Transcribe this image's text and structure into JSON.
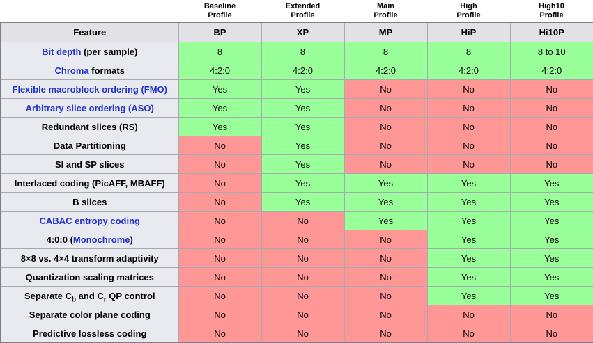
{
  "title": "H.264 profile feature comparison table",
  "colors": {
    "yes_cell_bg": "#99ff99",
    "no_cell_bg": "#ff9797",
    "feature_cell_bg": "#e9e9f0",
    "header_cell_bg": "#e2e2e5",
    "link_text": "#2233cc",
    "grid_border": "#a7a9b1",
    "outer_border": "#7e7e86"
  },
  "profile_headers": [
    {
      "line1": "",
      "line2": ""
    },
    {
      "line1": "Baseline",
      "line2": "Profile"
    },
    {
      "line1": "Extended",
      "line2": "Profile"
    },
    {
      "line1": "Main",
      "line2": "Profile"
    },
    {
      "line1": "High",
      "line2": "Profile"
    },
    {
      "line1": "High10",
      "line2": "Profile"
    }
  ],
  "columns": [
    "Feature",
    "BP",
    "XP",
    "MP",
    "HiP",
    "Hi10P"
  ],
  "rows": [
    {
      "feature": [
        {
          "t": "Bit depth",
          "link": true
        },
        {
          "t": " (per sample)"
        }
      ],
      "values": [
        "8",
        "8",
        "8",
        "8",
        "8 to 10"
      ]
    },
    {
      "feature": [
        {
          "t": "Chroma",
          "link": true
        },
        {
          "t": " formats"
        }
      ],
      "values": [
        "4:2:0",
        "4:2:0",
        "4:2:0",
        "4:2:0",
        "4:2:0"
      ]
    },
    {
      "feature": [
        {
          "t": "Flexible macroblock ordering (FMO)",
          "link": true
        }
      ],
      "values": [
        "Yes",
        "Yes",
        "No",
        "No",
        "No"
      ]
    },
    {
      "feature": [
        {
          "t": "Arbitrary slice ordering (ASO)",
          "link": true
        }
      ],
      "values": [
        "Yes",
        "Yes",
        "No",
        "No",
        "No"
      ]
    },
    {
      "feature": [
        {
          "t": "Redundant slices (RS)"
        }
      ],
      "values": [
        "Yes",
        "Yes",
        "No",
        "No",
        "No"
      ]
    },
    {
      "feature": [
        {
          "t": "Data Partitioning"
        }
      ],
      "values": [
        "No",
        "Yes",
        "No",
        "No",
        "No"
      ]
    },
    {
      "feature": [
        {
          "t": "SI and SP slices"
        }
      ],
      "values": [
        "No",
        "Yes",
        "No",
        "No",
        "No"
      ]
    },
    {
      "feature": [
        {
          "t": "Interlaced coding (PicAFF, MBAFF)"
        }
      ],
      "values": [
        "No",
        "Yes",
        "Yes",
        "Yes",
        "Yes"
      ]
    },
    {
      "feature": [
        {
          "t": "B slices"
        }
      ],
      "values": [
        "No",
        "Yes",
        "Yes",
        "Yes",
        "Yes"
      ]
    },
    {
      "feature": [
        {
          "t": "CABAC entropy coding",
          "link": true
        }
      ],
      "values": [
        "No",
        "No",
        "Yes",
        "Yes",
        "Yes"
      ]
    },
    {
      "feature": [
        {
          "t": "4:0:0 ("
        },
        {
          "t": "Monochrome",
          "link": true
        },
        {
          "t": ")"
        }
      ],
      "values": [
        "No",
        "No",
        "No",
        "Yes",
        "Yes"
      ]
    },
    {
      "feature": [
        {
          "t": "8×8 vs. 4×4 transform adaptivity"
        }
      ],
      "values": [
        "No",
        "No",
        "No",
        "Yes",
        "Yes"
      ]
    },
    {
      "feature": [
        {
          "t": "Quantization scaling matrices"
        }
      ],
      "values": [
        "No",
        "No",
        "No",
        "Yes",
        "Yes"
      ]
    },
    {
      "feature": [
        {
          "t": "Separate C"
        },
        {
          "t": "b",
          "sub": true
        },
        {
          "t": " and C"
        },
        {
          "t": "r",
          "sub": true
        },
        {
          "t": " QP control"
        }
      ],
      "values": [
        "No",
        "No",
        "No",
        "Yes",
        "Yes"
      ]
    },
    {
      "feature": [
        {
          "t": "Separate color plane coding"
        }
      ],
      "values": [
        "No",
        "No",
        "No",
        "No",
        "No"
      ]
    },
    {
      "feature": [
        {
          "t": "Predictive lossless coding"
        }
      ],
      "values": [
        "No",
        "No",
        "No",
        "No",
        "No"
      ]
    }
  ]
}
